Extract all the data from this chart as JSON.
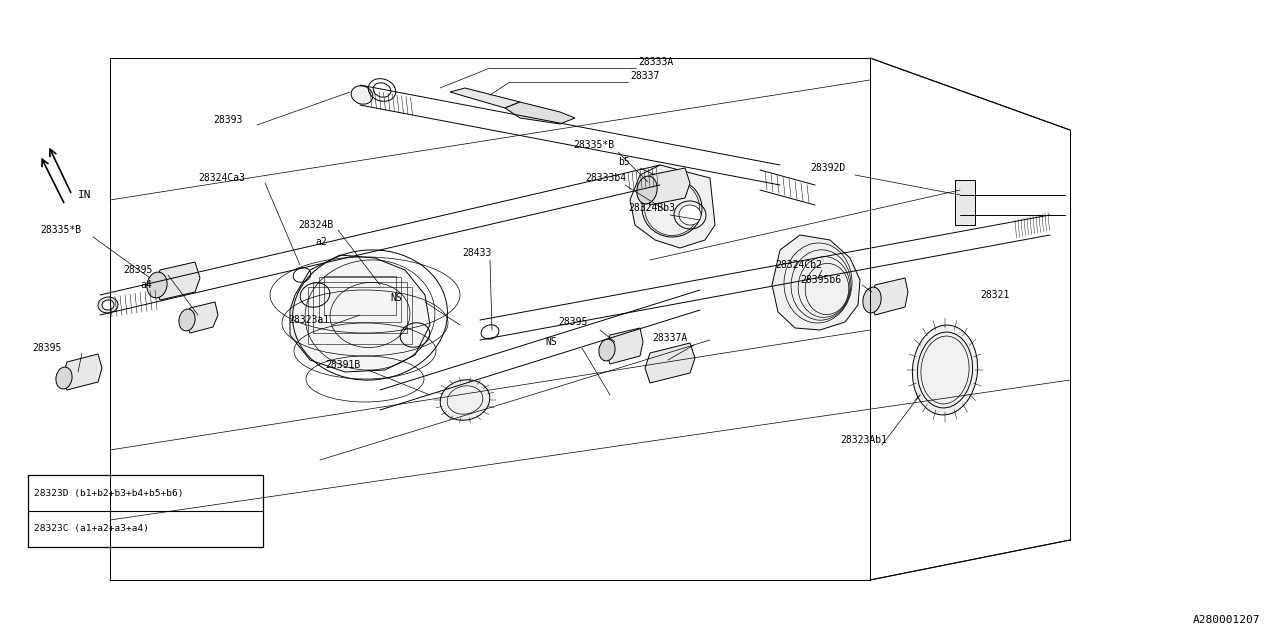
{
  "bg_color": "#ffffff",
  "line_color": "#000000",
  "fig_width": 12.8,
  "fig_height": 6.4,
  "dpi": 100,
  "footer_id": "A280001207",
  "legend_items": [
    "28323C (a1+a2+a3+a4)",
    "28323D (b1+b2+b3+b4+b5+b6)"
  ],
  "lw_main": 0.7,
  "lw_thin": 0.4,
  "lw_leader": 0.5,
  "font_size": 7.0,
  "font_family": "DejaVu Sans Mono"
}
